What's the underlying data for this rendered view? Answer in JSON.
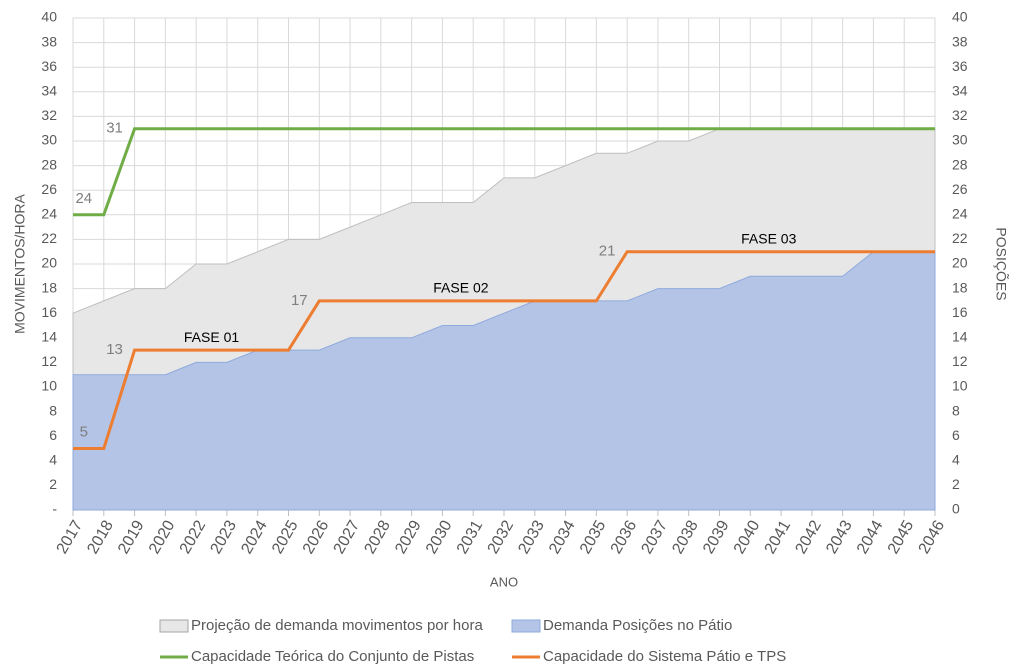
{
  "chart_data": {
    "type": "line",
    "x_label": "ANO",
    "y_label": "MOVIMENTOS/HORA",
    "y2_label": "POSIÇÕES",
    "categories": [
      "2017",
      "2018",
      "2019",
      "2020",
      "2022",
      "2023",
      "2024",
      "2025",
      "2026",
      "2027",
      "2028",
      "2029",
      "2030",
      "2031",
      "2032",
      "2033",
      "2034",
      "2035",
      "2036",
      "2037",
      "2038",
      "2039",
      "2040",
      "2041",
      "2042",
      "2043",
      "2044",
      "2045",
      "2046"
    ],
    "series": [
      {
        "name": "Projeção de demanda movimentos por hora",
        "style": "area",
        "color": "#e7e7e7",
        "values": [
          16,
          17,
          18,
          18,
          20,
          20,
          21,
          22,
          22,
          23,
          24,
          25,
          25,
          25,
          27,
          27,
          28,
          29,
          29,
          30,
          30,
          31,
          31,
          31,
          31,
          31,
          31,
          31,
          31
        ]
      },
      {
        "name": "Demanda Posições no Pátio",
        "style": "area",
        "color": "#b4c4e6",
        "values": [
          11,
          11,
          11,
          11,
          12,
          12,
          13,
          13,
          13,
          14,
          14,
          14,
          15,
          15,
          16,
          17,
          17,
          17,
          17,
          18,
          18,
          18,
          19,
          19,
          19,
          19,
          21,
          21,
          21
        ]
      },
      {
        "name": "Capacidade Teórica do Conjunto de Pistas",
        "style": "line",
        "color": "#70ad47",
        "values": [
          24,
          24,
          31,
          31,
          31,
          31,
          31,
          31,
          31,
          31,
          31,
          31,
          31,
          31,
          31,
          31,
          31,
          31,
          31,
          31,
          31,
          31,
          31,
          31,
          31,
          31,
          31,
          31,
          31
        ],
        "labeled_points": [
          1,
          2
        ]
      },
      {
        "name": "Capacidade do Sistema Pátio e TPS",
        "style": "line",
        "color": "#ed7d31",
        "values": [
          5,
          5,
          13,
          13,
          13,
          13,
          13,
          13,
          17,
          17,
          17,
          17,
          17,
          17,
          17,
          17,
          17,
          17,
          21,
          21,
          21,
          21,
          21,
          21,
          21,
          21,
          21,
          21,
          21
        ],
        "labeled_points": [
          1,
          2,
          8,
          18
        ]
      }
    ],
    "annotations": [
      "FASE 01",
      "FASE 02",
      "FASE 03"
    ],
    "ylim": [
      0,
      40
    ],
    "yticks": [
      {
        "value": 0,
        "label": "-"
      },
      2,
      4,
      6,
      8,
      10,
      12,
      14,
      16,
      18,
      20,
      22,
      24,
      26,
      28,
      30,
      32,
      34,
      36,
      38,
      40
    ],
    "y2lim": [
      0,
      40
    ],
    "y2ticks": [
      0,
      2,
      4,
      6,
      8,
      10,
      12,
      14,
      16,
      18,
      20,
      22,
      24,
      26,
      28,
      30,
      32,
      34,
      36,
      38,
      40
    ],
    "grid": true
  }
}
